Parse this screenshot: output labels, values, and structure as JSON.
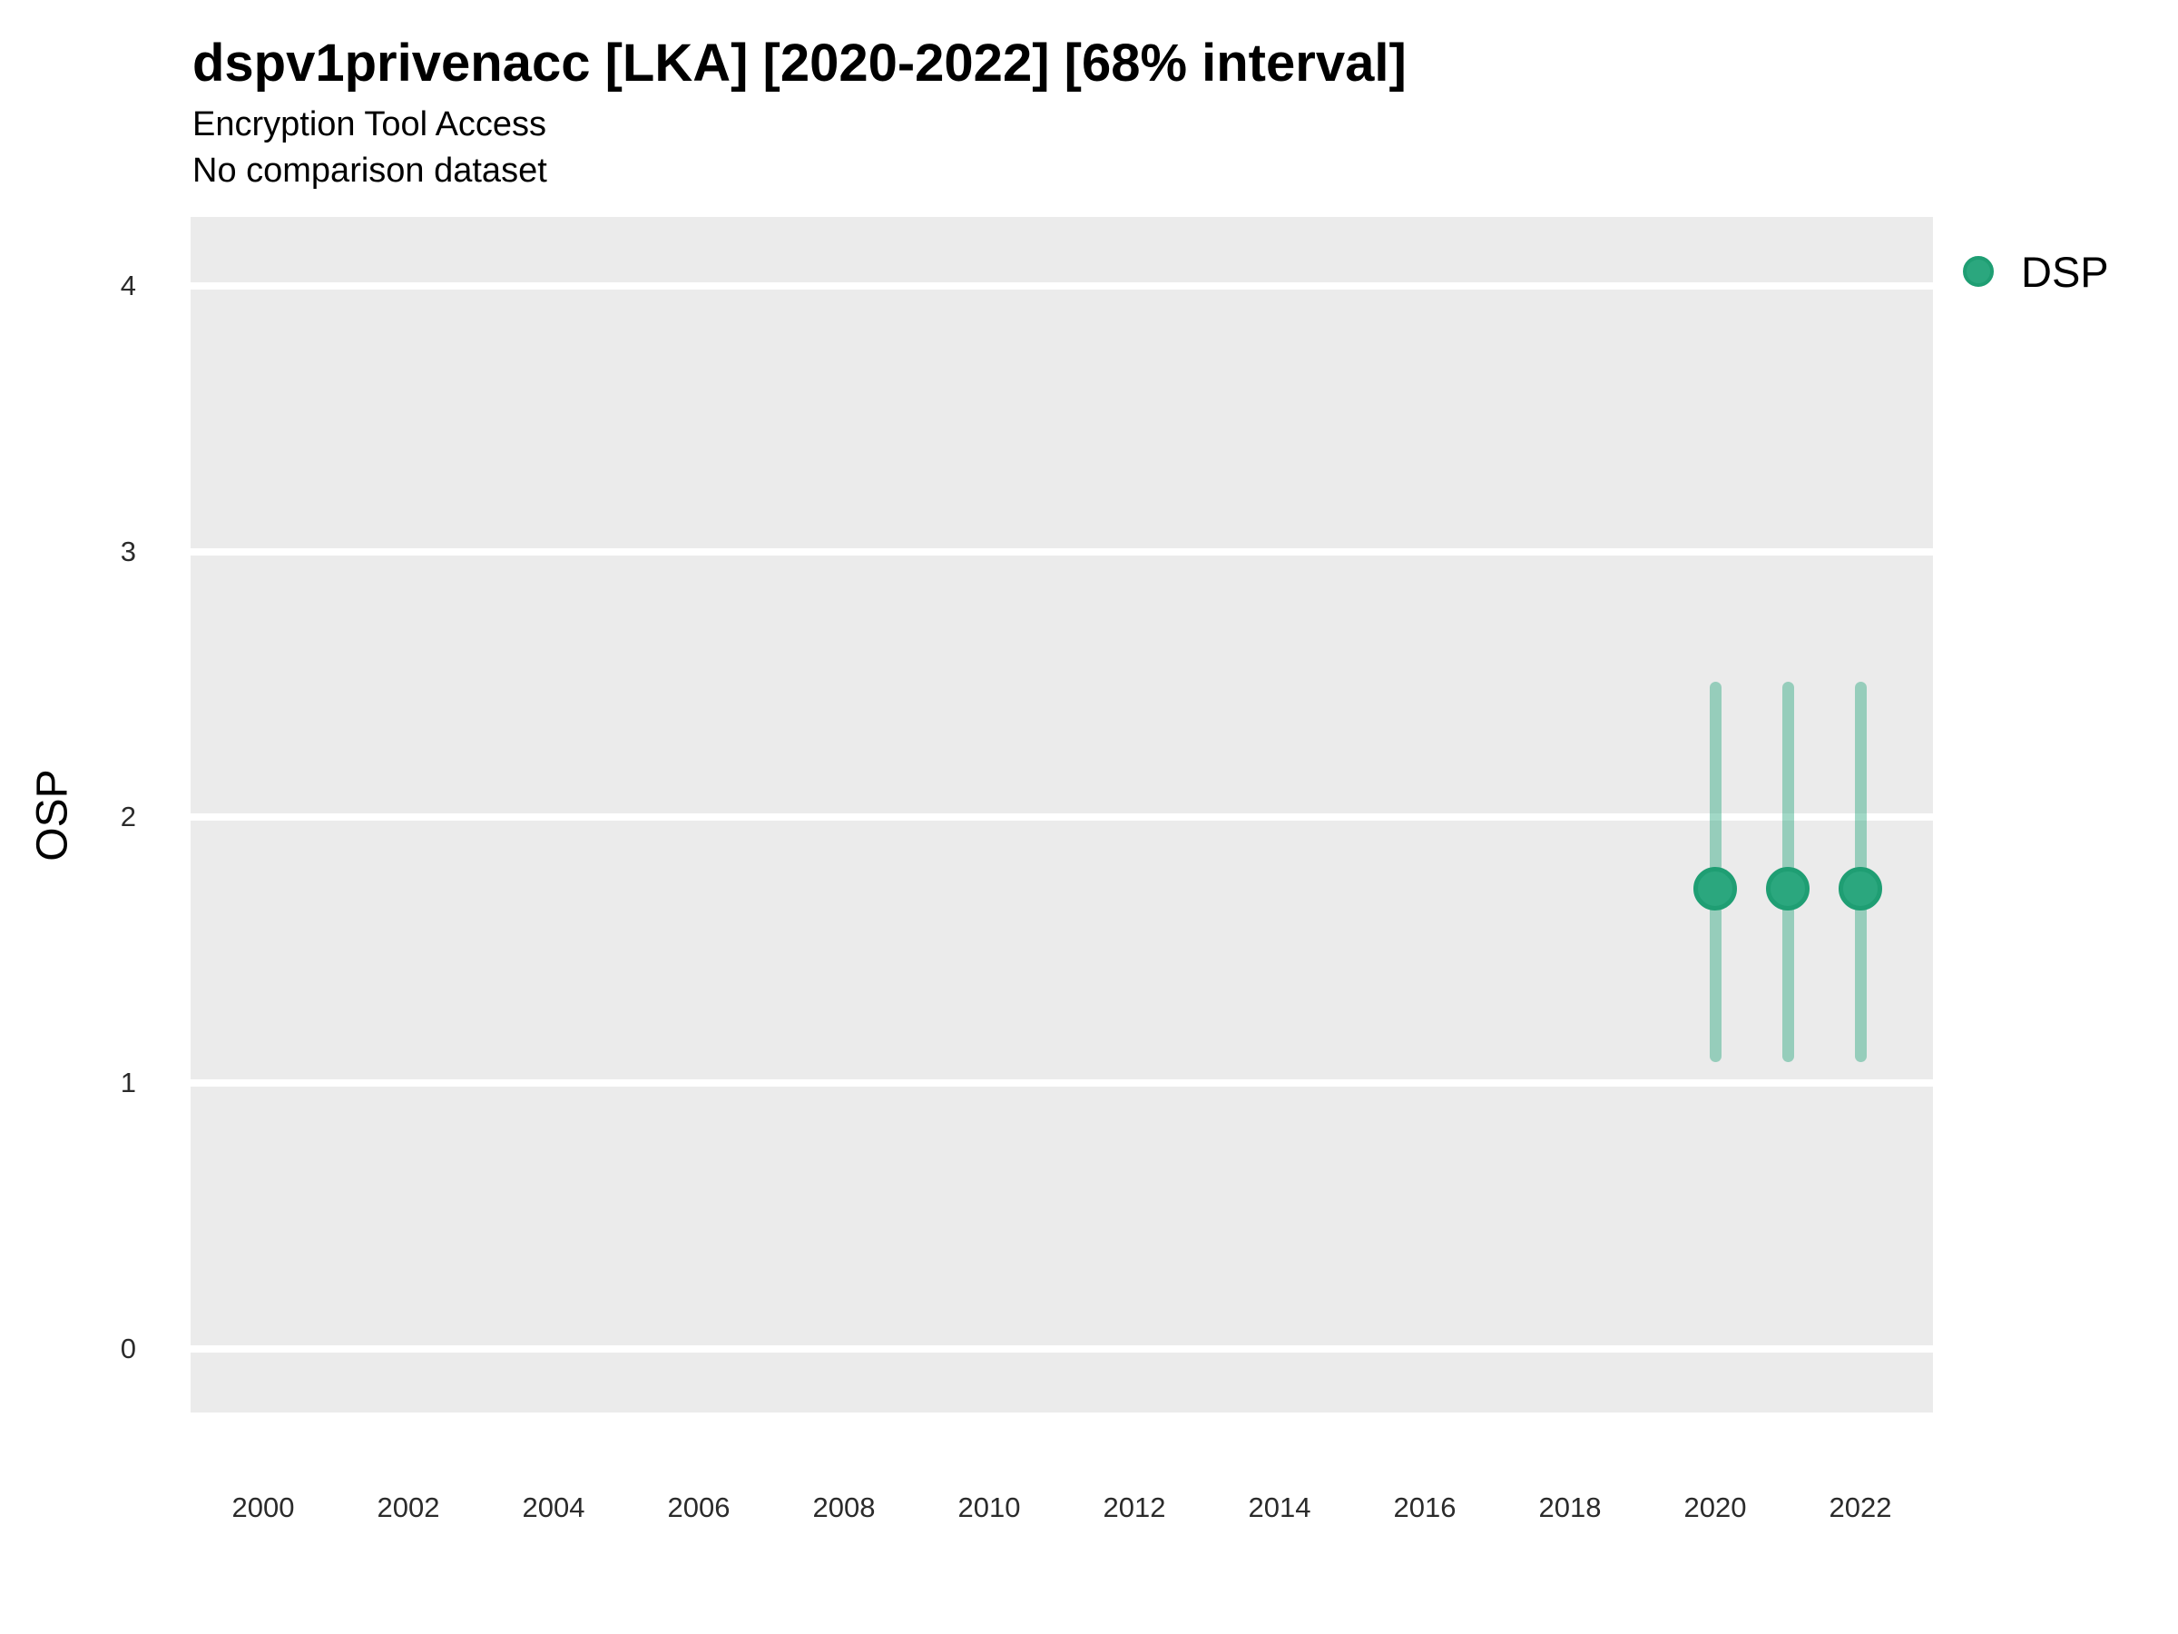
{
  "header": {
    "title": "dspv1privenacc [LKA] [2020-2022] [68% interval]",
    "subtitle": "Encryption Tool Access",
    "comparison_note": "No comparison dataset"
  },
  "legend": {
    "position": "right",
    "items": [
      {
        "label": "DSP",
        "swatch_color": "#2ba77e",
        "swatch_border": "#1f9e73"
      }
    ]
  },
  "colors": {
    "panel_background": "#ebebeb",
    "gridline": "#ffffff",
    "point_fill": "#2ba77e",
    "point_border": "#1f9e73",
    "interval_line": "rgba(42,167,126,0.44)",
    "text": "#000000",
    "tick_text": "#2b2b2b"
  },
  "chart_data": {
    "type": "scatter",
    "title": "dspv1privenacc [LKA] [2020-2022] [68% interval]",
    "subtitle": "Encryption Tool Access",
    "note": "No comparison dataset",
    "xlabel": "",
    "ylabel": "OSP",
    "xlim": [
      1999,
      2023
    ],
    "ylim": [
      -0.24,
      4.26
    ],
    "x_ticks": [
      2000,
      2002,
      2004,
      2006,
      2008,
      2010,
      2012,
      2014,
      2016,
      2018,
      2020,
      2022
    ],
    "y_ticks": [
      0,
      1,
      2,
      3,
      4
    ],
    "grid": "horizontal major gridlines, white on grey panel",
    "legend_position": "right",
    "interval_label": "68% interval",
    "series": [
      {
        "name": "DSP",
        "color": "#2ba77e",
        "x": [
          2020,
          2021,
          2022
        ],
        "y": [
          1.73,
          1.73,
          1.73
        ],
        "y_low": [
          1.08,
          1.08,
          1.08
        ],
        "y_high": [
          2.51,
          2.51,
          2.51
        ]
      }
    ]
  }
}
